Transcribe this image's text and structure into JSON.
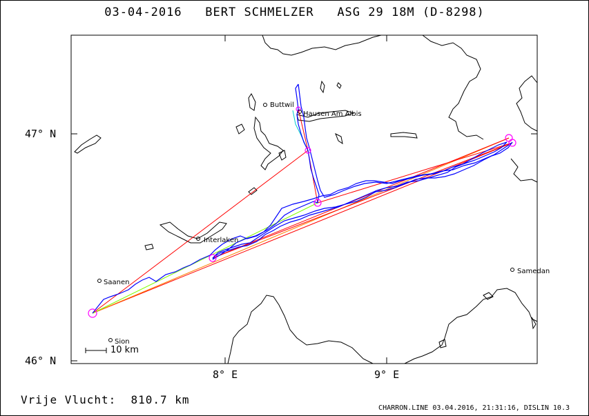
{
  "title": {
    "date": "03-04-2016",
    "pilot": "BERT SCHMELZER",
    "glider": "ASG 29 18M (D-8298)"
  },
  "axes": {
    "lat_labels": [
      "47° N",
      "46° N"
    ],
    "lon_labels": [
      "8° E",
      "9° E"
    ]
  },
  "places": {
    "buttwil": "Buttwil",
    "hausen": "Hausen Am Albis",
    "interlaken": "Interlaken",
    "saanen": "Saanen",
    "sion": "Sion",
    "samedan": "Samedan"
  },
  "scale": {
    "label": "10 km"
  },
  "distance": {
    "label": "Vrije Vlucht:",
    "value": "810.7 km"
  },
  "footer": "CHARRON.LINE 03.04.2016, 21:31:16, DISLIN 10.3",
  "colors": {
    "track": "#0000ff",
    "task_line": "#ff0000",
    "task_line_orange": "#ff8000",
    "leg_green": "#80ff00",
    "leg_cyan": "#00cccc",
    "turnpoint": "#ff00ff"
  }
}
